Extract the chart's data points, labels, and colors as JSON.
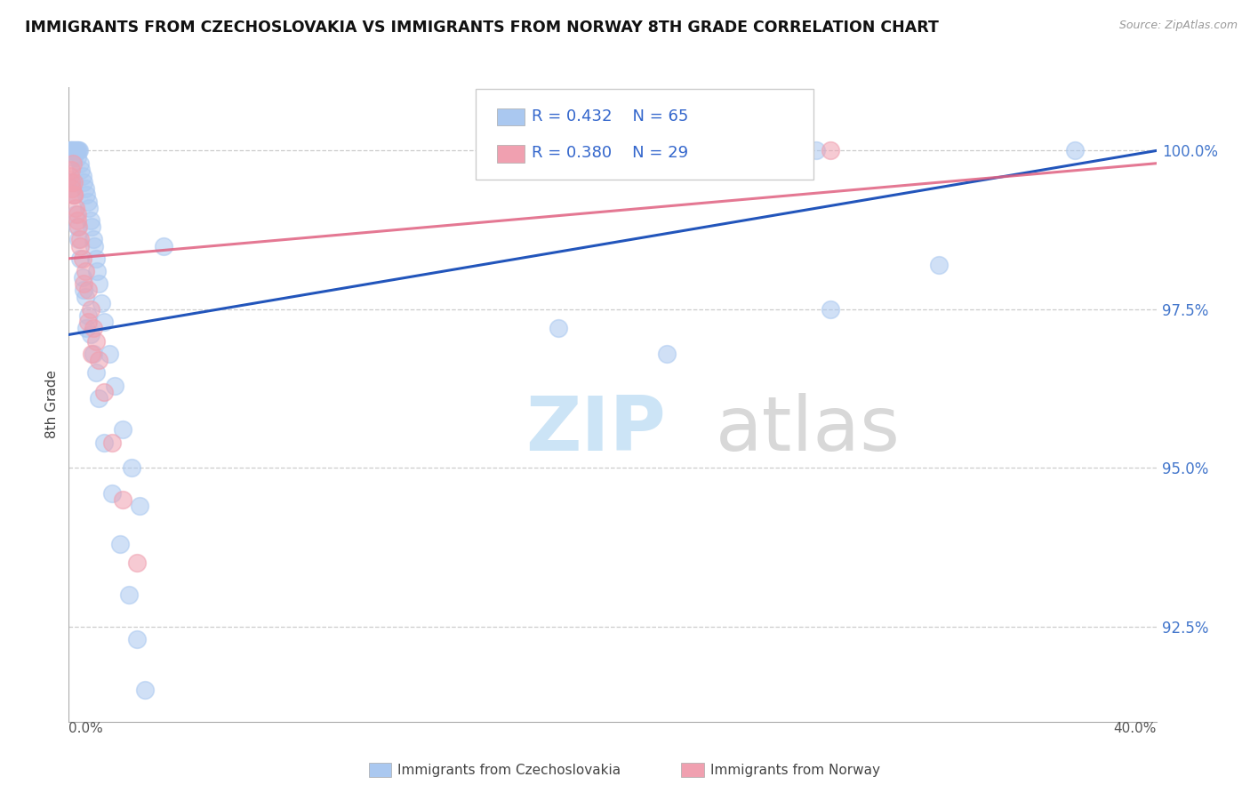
{
  "title": "IMMIGRANTS FROM CZECHOSLOVAKIA VS IMMIGRANTS FROM NORWAY 8TH GRADE CORRELATION CHART",
  "source": "Source: ZipAtlas.com",
  "ylabel": "8th Grade",
  "yaxis_values": [
    92.5,
    95.0,
    97.5,
    100.0
  ],
  "xlim": [
    0.0,
    40.0
  ],
  "ylim": [
    91.0,
    101.0
  ],
  "legend_blue_label": "Immigrants from Czechoslovakia",
  "legend_pink_label": "Immigrants from Norway",
  "blue_color": "#aac8f0",
  "blue_line_color": "#2255bb",
  "pink_color": "#f0a0b0",
  "pink_line_color": "#e06080",
  "blue_x": [
    0.05,
    0.08,
    0.1,
    0.12,
    0.15,
    0.18,
    0.2,
    0.22,
    0.25,
    0.28,
    0.3,
    0.32,
    0.35,
    0.38,
    0.4,
    0.45,
    0.5,
    0.55,
    0.6,
    0.65,
    0.7,
    0.75,
    0.8,
    0.85,
    0.9,
    0.95,
    1.0,
    1.05,
    1.1,
    1.2,
    1.3,
    1.5,
    1.7,
    2.0,
    2.3,
    2.6,
    0.15,
    0.2,
    0.25,
    0.3,
    0.35,
    0.4,
    0.5,
    0.6,
    0.7,
    0.8,
    0.9,
    1.0,
    1.1,
    1.3,
    1.6,
    1.9,
    2.2,
    2.5,
    2.8,
    0.55,
    0.65,
    3.5,
    27.5,
    37.0,
    28.0,
    32.0,
    22.0,
    18.0,
    0.1
  ],
  "blue_y": [
    100.0,
    100.0,
    100.0,
    100.0,
    100.0,
    99.9,
    100.0,
    100.0,
    100.0,
    100.0,
    99.9,
    100.0,
    100.0,
    100.0,
    99.8,
    99.7,
    99.6,
    99.5,
    99.4,
    99.3,
    99.2,
    99.1,
    98.9,
    98.8,
    98.6,
    98.5,
    98.3,
    98.1,
    97.9,
    97.6,
    97.3,
    96.8,
    96.3,
    95.6,
    95.0,
    94.4,
    99.5,
    99.3,
    99.0,
    98.8,
    98.6,
    98.3,
    98.0,
    97.7,
    97.4,
    97.1,
    96.8,
    96.5,
    96.1,
    95.4,
    94.6,
    93.8,
    93.0,
    92.3,
    91.5,
    97.8,
    97.2,
    98.5,
    100.0,
    100.0,
    97.5,
    98.2,
    96.8,
    97.2,
    99.5
  ],
  "pink_x": [
    0.05,
    0.08,
    0.1,
    0.12,
    0.15,
    0.18,
    0.2,
    0.25,
    0.3,
    0.35,
    0.4,
    0.5,
    0.6,
    0.7,
    0.8,
    0.9,
    1.0,
    1.1,
    1.3,
    1.6,
    2.0,
    2.5,
    0.2,
    0.3,
    0.4,
    0.55,
    0.7,
    0.85,
    28.0
  ],
  "pink_y": [
    99.6,
    99.5,
    99.7,
    99.4,
    99.8,
    99.5,
    99.3,
    99.1,
    99.0,
    98.8,
    98.6,
    98.3,
    98.1,
    97.8,
    97.5,
    97.2,
    97.0,
    96.7,
    96.2,
    95.4,
    94.5,
    93.5,
    99.3,
    98.9,
    98.5,
    97.9,
    97.3,
    96.8,
    100.0
  ],
  "blue_trendline_x0": 0.0,
  "blue_trendline_y0": 97.1,
  "blue_trendline_x1": 40.0,
  "blue_trendline_y1": 100.0,
  "pink_trendline_x0": 0.0,
  "pink_trendline_y0": 98.3,
  "pink_trendline_x1": 40.0,
  "pink_trendline_y1": 99.8
}
